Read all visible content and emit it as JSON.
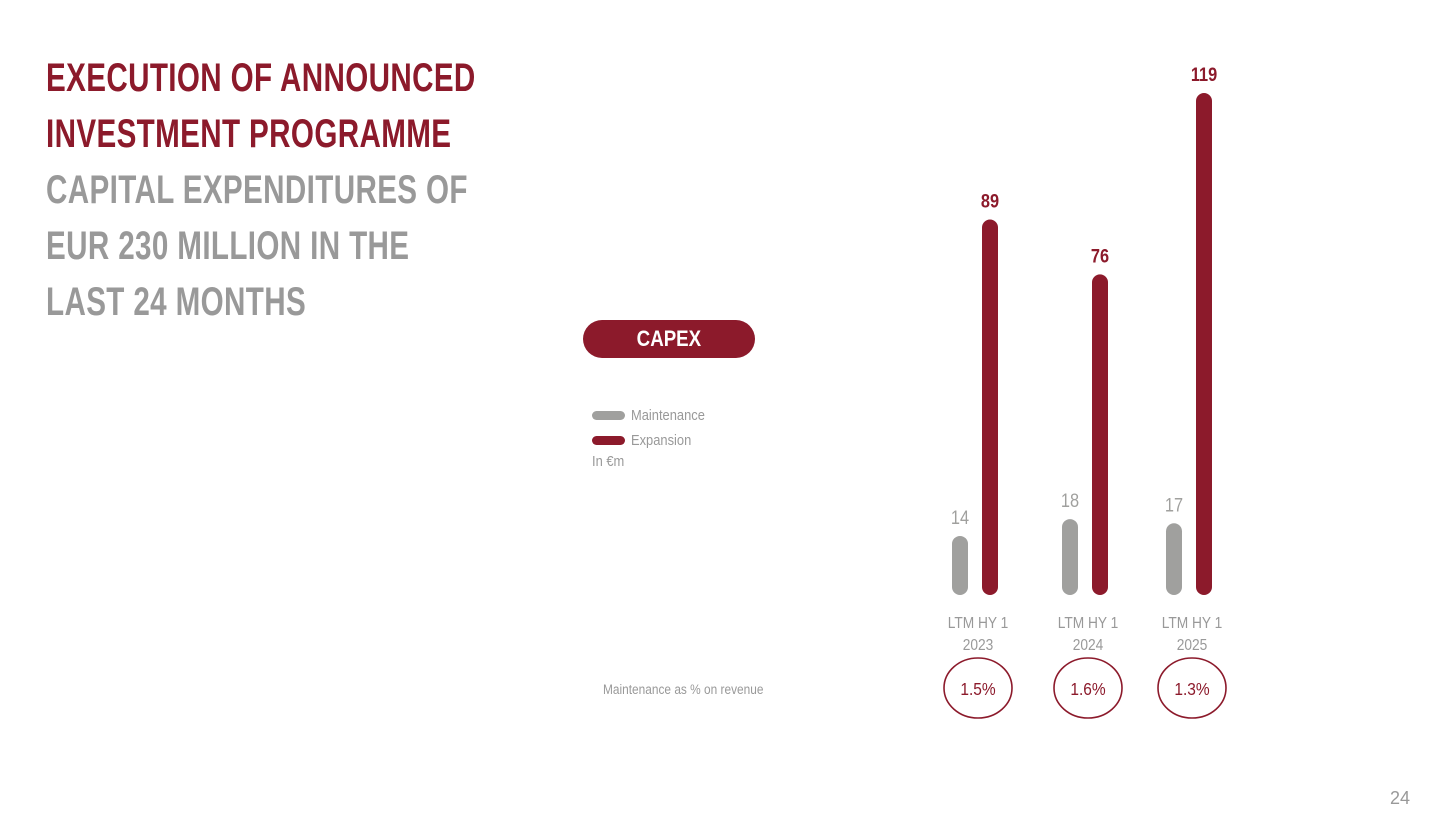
{
  "headline": {
    "red_lines": [
      "EXECUTION OF ANNOUNCED",
      "INVESTMENT PROGRAMME"
    ],
    "grey_lines": [
      "CAPITAL EXPENDITURES OF",
      "EUR 230 MILLION IN THE",
      "LAST 24 MONTHS"
    ]
  },
  "capex_label": "CAPEX",
  "legend": {
    "maintenance": "Maintenance",
    "expansion": "Expansion"
  },
  "unit_label": "In €m",
  "pct_caption": "Maintenance as % on revenue",
  "page_number": "24",
  "colors": {
    "maintenance": "#a0a09e",
    "expansion": "#8c1a2b",
    "text_grey": "#999999"
  },
  "chart_data": {
    "type": "bar",
    "categories": [
      [
        "LTM HY 1",
        "2023"
      ],
      [
        "LTM HY 1",
        "2024"
      ],
      [
        "LTM HY 1",
        "2025"
      ]
    ],
    "series": [
      {
        "name": "Maintenance",
        "values": [
          14,
          18,
          17
        ]
      },
      {
        "name": "Expansion",
        "values": [
          89,
          76,
          119
        ]
      }
    ],
    "maintenance_pct_revenue": [
      "1.5%",
      "1.6%",
      "1.3%"
    ],
    "ylim": [
      0,
      119
    ],
    "legend_placement": "left",
    "grid": false
  }
}
